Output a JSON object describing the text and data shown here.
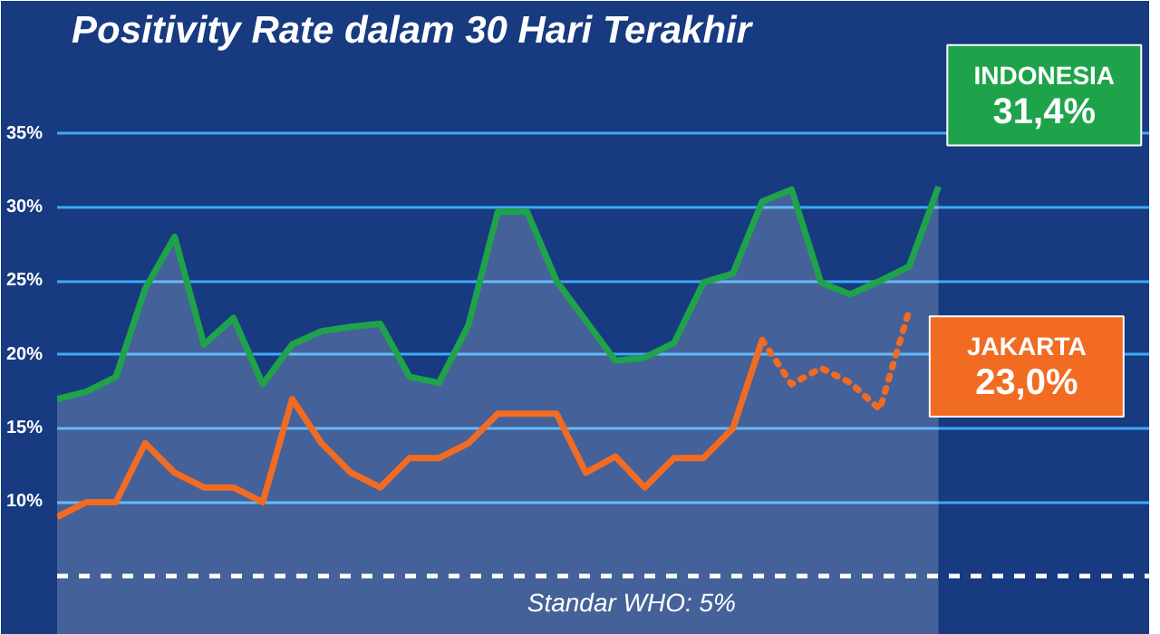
{
  "chart_data": {
    "type": "line",
    "title": "Positivity Rate dalam 30 Hari Terakhir",
    "categories": [
      null,
      null,
      null,
      null,
      null,
      null,
      null,
      null,
      null,
      null,
      null,
      null,
      null,
      null,
      null,
      null,
      null,
      null,
      null,
      null,
      null,
      null,
      null,
      null,
      null,
      null,
      null,
      null,
      null,
      null,
      null
    ],
    "series": [
      {
        "name": "INDONESIA",
        "type": "area",
        "color": "#1fa34a",
        "line_style": "solid",
        "values": [
          17.0,
          17.5,
          18.5,
          24.5,
          28.0,
          20.7,
          22.5,
          18.0,
          20.7,
          21.6,
          21.9,
          22.1,
          18.5,
          18.1,
          22.0,
          29.7,
          29.7,
          25.0,
          22.3,
          19.6,
          19.8,
          20.8,
          24.9,
          25.5,
          30.4,
          31.2,
          24.9,
          24.1,
          25.0,
          26.0,
          31.4
        ],
        "value_labels": [
          null,
          null,
          null,
          null,
          null,
          null,
          null,
          null,
          null,
          null,
          null,
          null,
          null,
          null,
          null,
          null,
          null,
          null,
          null,
          null,
          null,
          null,
          null,
          null,
          null,
          null,
          null,
          null,
          null,
          null,
          "31,4%"
        ]
      },
      {
        "color": "#f26b22",
        "line_style": "solid",
        "values": [
          9.0,
          10.0,
          10.0,
          14.0,
          12.0,
          11.0,
          11.0,
          10.0,
          17.0,
          14.0,
          12.0,
          11.0,
          13.0,
          13.0,
          14.0,
          16.0,
          16.0,
          16.0,
          12.0,
          13.1,
          11.0,
          13.0,
          13.0,
          15.0,
          21.0,
          null,
          null,
          null,
          null,
          null,
          null
        ]
      },
      {
        "name": "JAKARTA",
        "color": "#f26b22",
        "line_style": "dotted",
        "values": [
          null,
          null,
          null,
          null,
          null,
          null,
          null,
          null,
          null,
          null,
          null,
          null,
          null,
          null,
          null,
          null,
          null,
          null,
          null,
          null,
          null,
          null,
          null,
          null,
          21.0,
          18.0,
          19.1,
          18.1,
          16.3,
          23.0,
          null
        ],
        "value_labels": [
          null,
          null,
          null,
          null,
          null,
          null,
          null,
          null,
          null,
          null,
          null,
          null,
          null,
          null,
          null,
          null,
          null,
          null,
          null,
          null,
          null,
          null,
          null,
          null,
          null,
          null,
          null,
          null,
          null,
          "23,0%",
          null
        ]
      }
    ],
    "ylim": [
      1,
      44
    ],
    "yticks": [
      {
        "value": 10,
        "label": "10%"
      },
      {
        "value": 15,
        "label": "15%"
      },
      {
        "value": 20,
        "label": "20%"
      },
      {
        "value": 25,
        "label": "25%"
      },
      {
        "value": 30,
        "label": "30%"
      },
      {
        "value": 35,
        "label": "35%"
      }
    ],
    "grid": "y",
    "tick_labels": "y",
    "ref_lines": [
      {
        "axis": "y",
        "value": 5,
        "label": "Standar WHO: 5%",
        "color": "#ffffff",
        "line_style": "dashed"
      }
    ]
  }
}
